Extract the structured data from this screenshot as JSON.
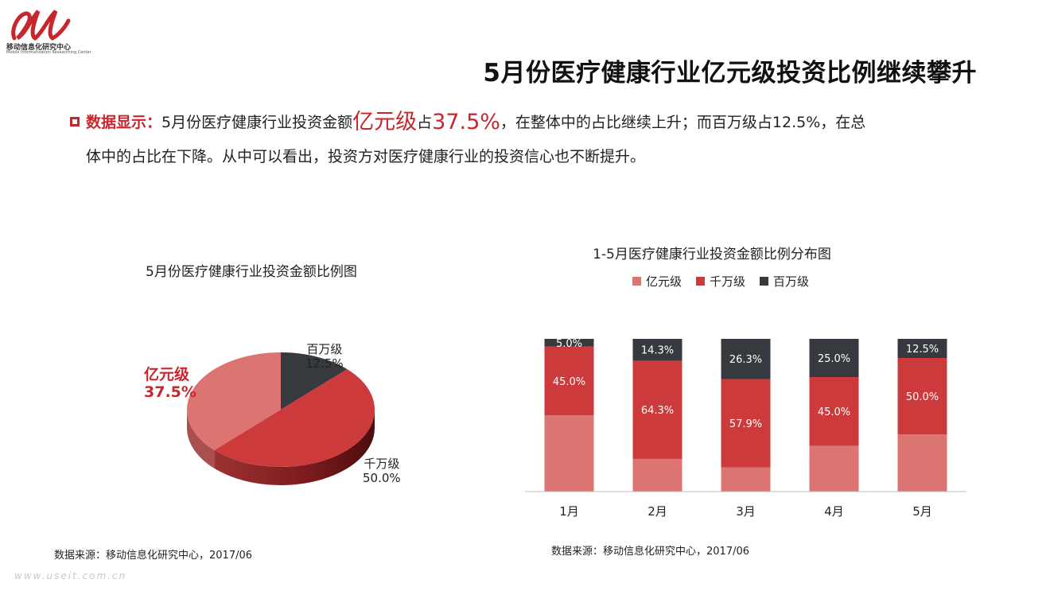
{
  "logo": {
    "name": "移动信息化研究中心",
    "subname": "Mobile Informatization Researching Center"
  },
  "title": "5月份医疗健康行业亿元级投资比例继续攀升",
  "paragraph": {
    "lead": "数据显示：",
    "part1": "5月份医疗健康行业投资金额",
    "highlight1": "亿元级",
    "part2": "占",
    "highlight2": "37.5%",
    "part3": "，在整体中的占比继续上升；而百万级占12.5%，在总",
    "line2": "体中的占比在下降。从中可以看出，投资方对医疗健康行业的投资信心也不断提升。"
  },
  "source_left": "数据来源：移动信息化研究中心，2017/06",
  "source_right": "数据来源：移动信息化研究中心，2017/06",
  "watermark": "www.useit.com.cn",
  "colors": {
    "yi": "#dc7472",
    "qian": "#cd3a3c",
    "bai": "#363a3f",
    "accent": "#c8262d"
  },
  "chart_data": [
    {
      "type": "pie",
      "title": "5月份医疗健康行业投资金额比例图",
      "slices": [
        {
          "label": "亿元级",
          "value": 37.5,
          "value_label": "37.5%"
        },
        {
          "label": "千万级",
          "value": 50.0,
          "value_label": "50.0%"
        },
        {
          "label": "百万级",
          "value": 12.5,
          "value_label": "12.5%"
        }
      ]
    },
    {
      "type": "bar",
      "stacked": true,
      "title": "1-5月医疗健康行业投资金额比例分布图",
      "categories": [
        "1月",
        "2月",
        "3月",
        "4月",
        "5月"
      ],
      "ylim": [
        0,
        100
      ],
      "legend_position": "top",
      "series": [
        {
          "name": "亿元级",
          "values": [
            50.0,
            21.4,
            15.8,
            30.0,
            37.5
          ],
          "labels": [
            "",
            "",
            "",
            "",
            ""
          ]
        },
        {
          "name": "千万级",
          "values": [
            45.0,
            64.3,
            57.9,
            45.0,
            50.0
          ],
          "labels": [
            "45.0%",
            "64.3%",
            "57.9%",
            "45.0%",
            "50.0%"
          ]
        },
        {
          "name": "百万级",
          "values": [
            5.0,
            14.3,
            26.3,
            25.0,
            12.5
          ],
          "labels": [
            "5.0%",
            "14.3%",
            "26.3%",
            "25.0%",
            "12.5%"
          ]
        }
      ]
    }
  ]
}
